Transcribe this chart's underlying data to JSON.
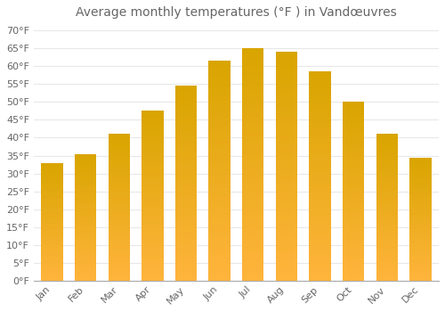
{
  "title": "Average monthly temperatures (°F ) in Vandœuvres",
  "months": [
    "Jan",
    "Feb",
    "Mar",
    "Apr",
    "May",
    "Jun",
    "Jul",
    "Aug",
    "Sep",
    "Oct",
    "Nov",
    "Dec"
  ],
  "values": [
    33,
    35.5,
    41,
    47.5,
    54.5,
    61.5,
    65,
    64,
    58.5,
    50,
    41,
    34.5
  ],
  "bar_color_top": "#FFA500",
  "bar_color_bottom": "#FFD060",
  "background_color": "#FFFFFF",
  "grid_color": "#E8E8E8",
  "text_color": "#666666",
  "axis_color": "#AAAAAA",
  "ylim": [
    0,
    72
  ],
  "yticks": [
    0,
    5,
    10,
    15,
    20,
    25,
    30,
    35,
    40,
    45,
    50,
    55,
    60,
    65,
    70
  ],
  "title_fontsize": 10,
  "tick_fontsize": 8,
  "bar_width": 0.65
}
